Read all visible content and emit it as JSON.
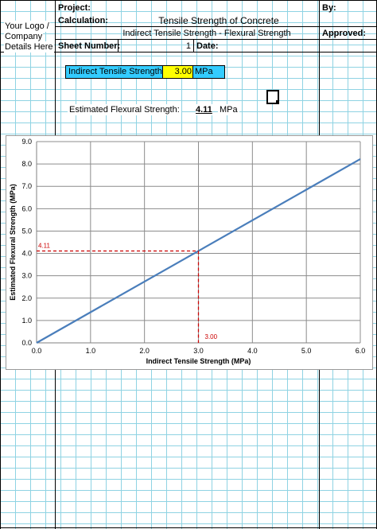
{
  "header": {
    "logo_lines": [
      "Your Logo /",
      "Company",
      "Details Here"
    ],
    "project_label": "Project:",
    "calculation_label": "Calculation:",
    "calculation_title": "Tensile Strength of Concrete",
    "calculation_subtitle": "Indirect Tensile Strength - Flexural Strength",
    "sheet_number_label": "Sheet Number:",
    "sheet_number_value": "1",
    "date_label": "Date:",
    "by_label": "By:",
    "approved_label": "Approved:"
  },
  "input": {
    "label": "Indirect Tensile Strength",
    "value": "3.00",
    "unit": "MPa",
    "colors": {
      "label_bg": "#33ccff",
      "value_bg": "#ffff00",
      "unit_bg": "#33ccff"
    }
  },
  "result": {
    "label": "Estimated Flexural Strength:",
    "value": "4.11",
    "unit": "MPa"
  },
  "chart_data": {
    "type": "line",
    "xlabel": "Indirect Tensile Strength (MPa)",
    "ylabel": "Estimated Flexural Strength (MPa)",
    "xlim": [
      0,
      6
    ],
    "ylim": [
      0,
      9
    ],
    "x_ticks": [
      "0.0",
      "1.0",
      "2.0",
      "3.0",
      "4.0",
      "5.0",
      "6.0"
    ],
    "y_ticks": [
      "0.0",
      "1.0",
      "2.0",
      "3.0",
      "4.0",
      "5.0",
      "6.0",
      "7.0",
      "8.0",
      "9.0"
    ],
    "grid": true,
    "series": [
      {
        "x": [
          0,
          6
        ],
        "y": [
          0,
          8.22
        ],
        "color": "#4a7ebb"
      }
    ],
    "marker": {
      "x": 3.0,
      "y": 4.11,
      "x_label": "3.00",
      "y_label": "4.11",
      "color": "#cc0000"
    }
  }
}
